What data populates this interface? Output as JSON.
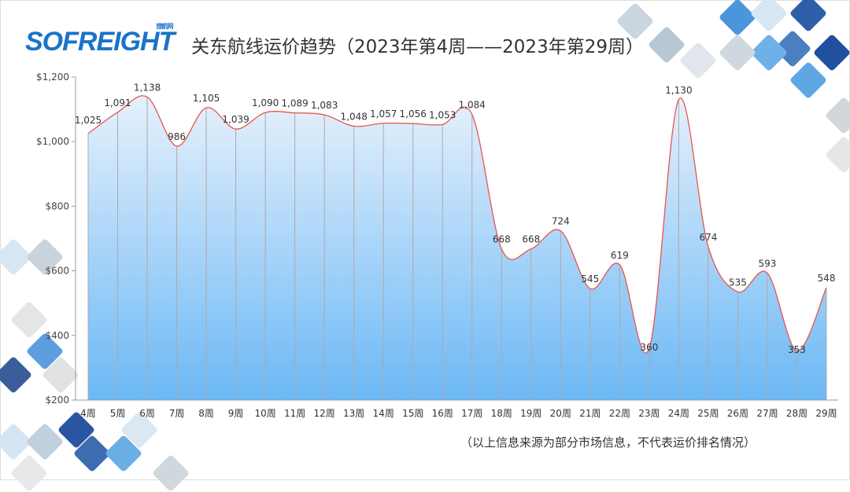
{
  "logo": {
    "text": "SOFREIGHT",
    "sub": "搜航网"
  },
  "title": "关东航线运价趋势（2023年第4周——2023年第29周）",
  "note": "（以上信息来源为部分市场信息，不代表运价排名情况）",
  "chart_data": {
    "type": "area",
    "title": "关东航线运价趋势（2023年第4周——2023年第29周）",
    "categories": [
      "4周",
      "5周",
      "6周",
      "7周",
      "8周",
      "9周",
      "10周",
      "11周",
      "12周",
      "13周",
      "14周",
      "15周",
      "16周",
      "17周",
      "18周",
      "19周",
      "20周",
      "21周",
      "22周",
      "23周",
      "24周",
      "25周",
      "26周",
      "27周",
      "28周",
      "29周"
    ],
    "values": [
      1025,
      1091,
      1138,
      986,
      1105,
      1039,
      1090,
      1089,
      1083,
      1048,
      1057,
      1056,
      1053,
      1084,
      668,
      668,
      724,
      545,
      619,
      360,
      1130,
      674,
      535,
      593,
      353,
      548
    ],
    "labels": [
      "1,025",
      "1,091",
      "1,138",
      "986",
      "1,105",
      "1,039",
      "1,090",
      "1,089",
      "1,083",
      "1,048",
      "1,057",
      "1,056",
      "1,053",
      "1,084",
      "668",
      "668",
      "724",
      "545",
      "619",
      "360",
      "1,130",
      "674",
      "535",
      "593",
      "353",
      "548"
    ],
    "yticks": [
      "$200",
      "$400",
      "$600",
      "$800",
      "$1,000",
      "$1,200"
    ],
    "ytick_values": [
      200,
      400,
      600,
      800,
      1000,
      1200
    ],
    "ylim": [
      200,
      1200
    ],
    "line_color": "#e8544e",
    "fill_color": "#6bb8f5"
  }
}
